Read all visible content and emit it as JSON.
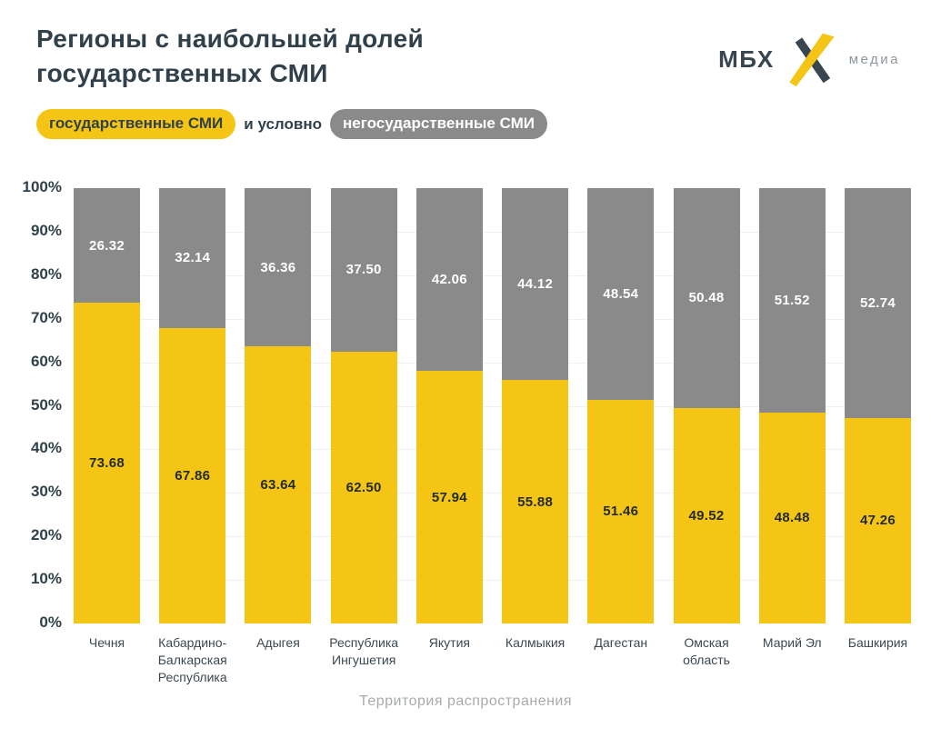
{
  "header": {
    "title_line1": "Регионы с наибольшей долей",
    "title_line2": "государственных СМИ",
    "logo": {
      "left_text": "МБХ",
      "right_text": "медиа"
    }
  },
  "legend": {
    "state_label": "государственные СМИ",
    "connector": "и условно",
    "nonstate_label": "негосударственные СМИ"
  },
  "colors": {
    "state_yellow": "#F4C515",
    "nonstate_gray": "#8A8A8A",
    "title_dark": "#31414B",
    "axis_title_gray": "#A8ABAD",
    "gridline": "#F1F1F1"
  },
  "chart_data": {
    "type": "bar",
    "stacked": true,
    "title": "Регионы с наибольшей долей государственных СМИ",
    "categories": [
      "Чечня",
      "Кабардино-\nБалкарская\nРеспублика",
      "Адыгея",
      "Республика\nИнгушетия",
      "Якутия",
      "Калмыкия",
      "Дагестан",
      "Омская\nобласть",
      "Марий Эл",
      "Башкирия"
    ],
    "series": [
      {
        "name": "государственные СМИ",
        "color": "#F4C515",
        "values": [
          73.68,
          67.86,
          63.64,
          62.5,
          57.94,
          55.88,
          51.46,
          49.52,
          48.48,
          47.26
        ]
      },
      {
        "name": "условно негосударственные СМИ",
        "color": "#8A8A8A",
        "values": [
          26.32,
          32.14,
          36.36,
          37.5,
          42.06,
          44.12,
          48.54,
          50.48,
          51.52,
          52.74
        ]
      }
    ],
    "value_labels": true,
    "yticks": [
      "100%",
      "90%",
      "80%",
      "70%",
      "60%",
      "50%",
      "40%",
      "30%",
      "20%",
      "10%",
      "0%"
    ],
    "ylim": [
      0,
      100
    ],
    "grid": true,
    "xlabel": "Территория распространения",
    "legend_position": "top-left"
  }
}
